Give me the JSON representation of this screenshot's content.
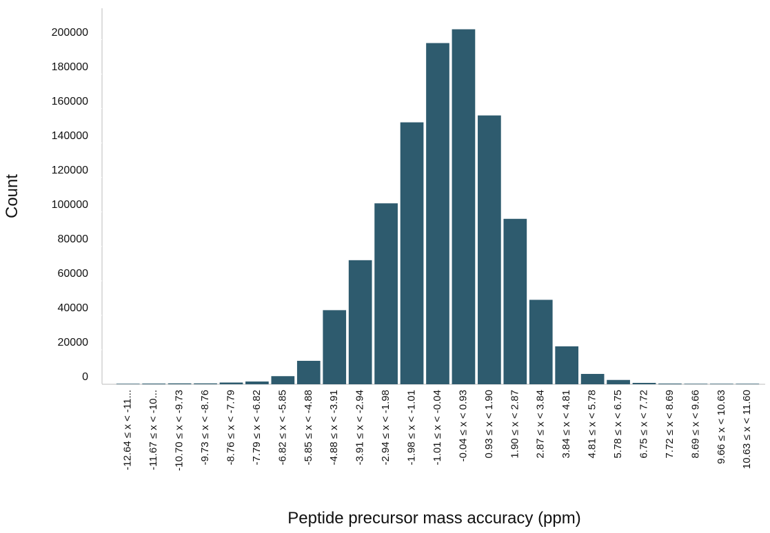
{
  "chart_data": {
    "type": "bar",
    "x_label": "Peptide precursor mass accuracy (ppm)",
    "y_label": "Count",
    "categories": [
      "-12.64 ≤ x < -11...",
      "-11.67 ≤ x < -10...",
      "-10.70 ≤ x < -9.73",
      "-9.73 ≤ x < -8.76",
      "-8.76 ≤ x < -7.79",
      "-7.79 ≤ x < -6.82",
      "-6.82 ≤ x < -5.85",
      "-5.85 ≤ x < -4.88",
      "-4.88 ≤ x < -3.91",
      "-3.91 ≤ x < -2.94",
      "-2.94 ≤ x < -1.98",
      "-1.98 ≤ x < -1.01",
      "-1.01 ≤ x < -0.04",
      "-0.04 ≤ x < 0.93",
      "0.93 ≤ x < 1.90",
      "1.90 ≤ x < 2.87",
      "2.87 ≤ x < 3.84",
      "3.84 ≤ x < 4.81",
      "4.81 ≤ x < 5.78",
      "5.78 ≤ x < 6.75",
      "6.75 ≤ x < 7.72",
      "7.72 ≤ x < 8.69",
      "8.69 ≤ x < 9.66",
      "9.66 ≤ x < 10.63",
      "10.63 ≤ x < 11.60"
    ],
    "values": [
      300,
      400,
      500,
      500,
      1000,
      1600,
      4700,
      13600,
      43000,
      72000,
      105000,
      152000,
      198000,
      206000,
      156000,
      96000,
      49000,
      22000,
      6000,
      2500,
      800,
      400,
      300,
      300,
      300
    ],
    "color": "#2e5b6e",
    "ylim": [
      0,
      215000
    ],
    "yticks": [
      0,
      20000,
      40000,
      60000,
      80000,
      100000,
      120000,
      140000,
      160000,
      180000,
      200000
    ]
  }
}
